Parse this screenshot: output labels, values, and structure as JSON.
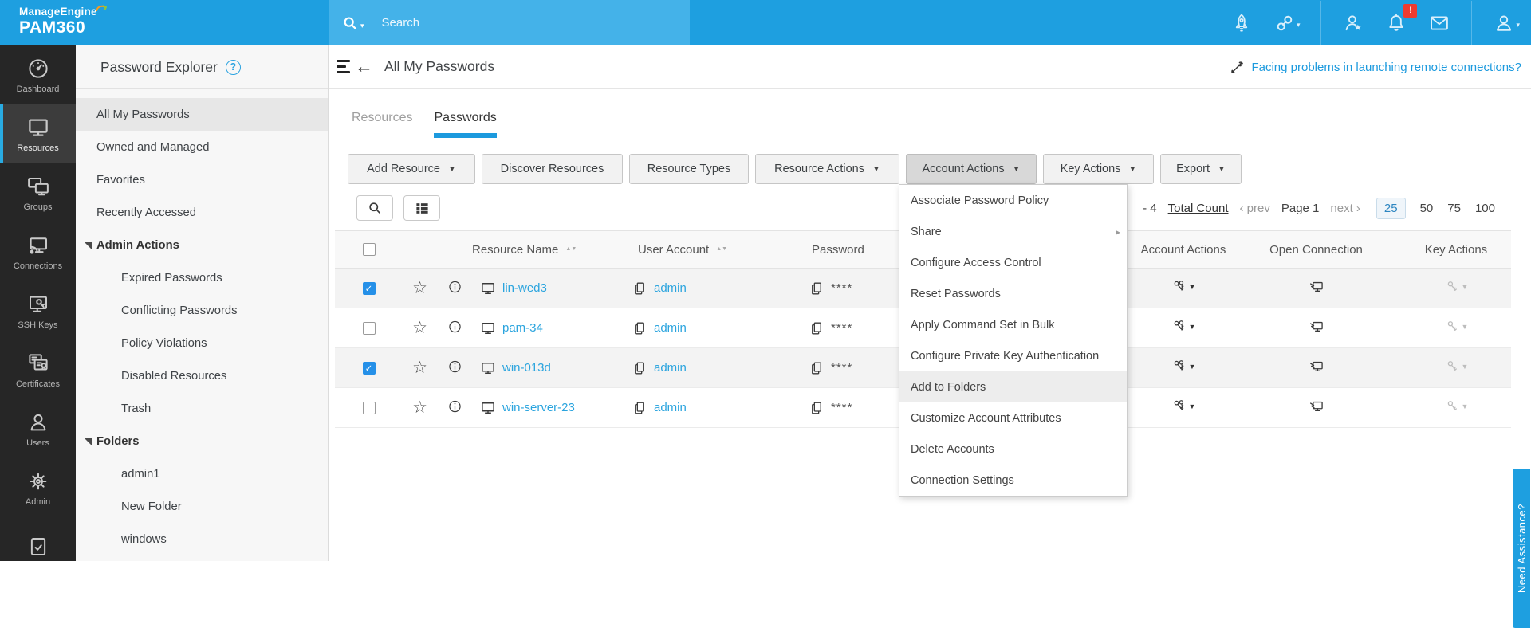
{
  "brand": {
    "company": "ManageEngine",
    "product": "PAM360"
  },
  "topbar": {
    "search_placeholder": "Search",
    "icons": [
      "rocket-icon",
      "link-icon",
      "user-star-icon",
      "bell-icon",
      "mail-icon",
      "user-icon"
    ],
    "notification_badge": "!"
  },
  "leftnav": {
    "items": [
      {
        "label": "Dashboard",
        "icon": "gauge",
        "active": false
      },
      {
        "label": "Resources",
        "icon": "monitor",
        "active": true
      },
      {
        "label": "Groups",
        "icon": "monitors",
        "active": false
      },
      {
        "label": "Connections",
        "icon": "monitor-dish",
        "active": false
      },
      {
        "label": "SSH Keys",
        "icon": "monitor-key",
        "active": false
      },
      {
        "label": "Certificates",
        "icon": "certificate",
        "active": false
      },
      {
        "label": "Users",
        "icon": "person",
        "active": false
      },
      {
        "label": "Admin",
        "icon": "gear",
        "active": false
      },
      {
        "label": "",
        "icon": "clipboard-check",
        "active": false
      }
    ]
  },
  "explorer": {
    "title": "Password Explorer",
    "help_icon": "?",
    "items": [
      {
        "label": "All My Passwords",
        "selected": true,
        "indent": false,
        "bold": false
      },
      {
        "label": "Owned and Managed",
        "selected": false,
        "indent": false,
        "bold": false
      },
      {
        "label": "Favorites",
        "selected": false,
        "indent": false,
        "bold": false
      },
      {
        "label": "Recently Accessed",
        "selected": false,
        "indent": false,
        "bold": false
      },
      {
        "label": "Admin Actions",
        "selected": false,
        "indent": false,
        "bold": true
      },
      {
        "label": "Expired Passwords",
        "selected": false,
        "indent": true,
        "bold": false
      },
      {
        "label": "Conflicting Passwords",
        "selected": false,
        "indent": true,
        "bold": false
      },
      {
        "label": "Policy Violations",
        "selected": false,
        "indent": true,
        "bold": false
      },
      {
        "label": "Disabled Resources",
        "selected": false,
        "indent": true,
        "bold": false
      },
      {
        "label": "Trash",
        "selected": false,
        "indent": true,
        "bold": false
      },
      {
        "label": "Folders",
        "selected": false,
        "indent": false,
        "bold": true
      },
      {
        "label": "admin1",
        "selected": false,
        "indent": true,
        "bold": false
      },
      {
        "label": "New Folder",
        "selected": false,
        "indent": true,
        "bold": false
      },
      {
        "label": "windows",
        "selected": false,
        "indent": true,
        "bold": false
      }
    ]
  },
  "header": {
    "title": "All My Passwords",
    "help_link": "Facing problems in launching remote connections?"
  },
  "tabs": [
    {
      "label": "Resources",
      "active": false
    },
    {
      "label": "Passwords",
      "active": true
    }
  ],
  "toolbar": {
    "buttons": [
      {
        "label": "Add Resource",
        "caret": true,
        "active": false
      },
      {
        "label": "Discover Resources",
        "caret": false,
        "active": false
      },
      {
        "label": "Resource Types",
        "caret": false,
        "active": false
      },
      {
        "label": "Resource Actions",
        "caret": true,
        "active": false
      },
      {
        "label": "Account Actions",
        "caret": true,
        "active": true
      },
      {
        "label": "Key Actions",
        "caret": true,
        "active": false
      },
      {
        "label": "Export",
        "caret": true,
        "active": false
      }
    ]
  },
  "pagination": {
    "count_prefix": "- 4",
    "total_label": "Total Count",
    "prev": "‹ prev",
    "page": "Page 1",
    "next": "next ›",
    "sizes": [
      "25",
      "50",
      "75",
      "100"
    ],
    "active_size": "25"
  },
  "table": {
    "headers": {
      "resource_name": "Resource Name",
      "user_account": "User Account",
      "password": "Password",
      "account_actions": "Account Actions",
      "open_connection": "Open Connection",
      "key_actions": "Key Actions"
    },
    "password_mask": "****",
    "rows": [
      {
        "resource": "lin-wed3",
        "user": "admin",
        "checked": true
      },
      {
        "resource": "pam-34",
        "user": "admin",
        "checked": false
      },
      {
        "resource": "win-013d",
        "user": "admin",
        "checked": true
      },
      {
        "resource": "win-server-23",
        "user": "admin",
        "checked": false
      }
    ]
  },
  "menu": {
    "items": [
      {
        "label": "Associate Password Policy",
        "submenu": false,
        "highlighted": false
      },
      {
        "label": "Share",
        "submenu": true,
        "highlighted": false
      },
      {
        "label": "Configure Access Control",
        "submenu": false,
        "highlighted": false
      },
      {
        "label": "Reset Passwords",
        "submenu": false,
        "highlighted": false
      },
      {
        "label": "Apply Command Set in Bulk",
        "submenu": false,
        "highlighted": false
      },
      {
        "label": "Configure Private Key Authentication",
        "submenu": false,
        "highlighted": false
      },
      {
        "label": "Add to Folders",
        "submenu": false,
        "highlighted": true
      },
      {
        "label": "Customize Account Attributes",
        "submenu": false,
        "highlighted": false
      },
      {
        "label": "Delete Accounts",
        "submenu": false,
        "highlighted": false
      },
      {
        "label": "Connection Settings",
        "submenu": false,
        "highlighted": false
      }
    ]
  },
  "assist_tab": {
    "label": "Need Assistance?"
  }
}
